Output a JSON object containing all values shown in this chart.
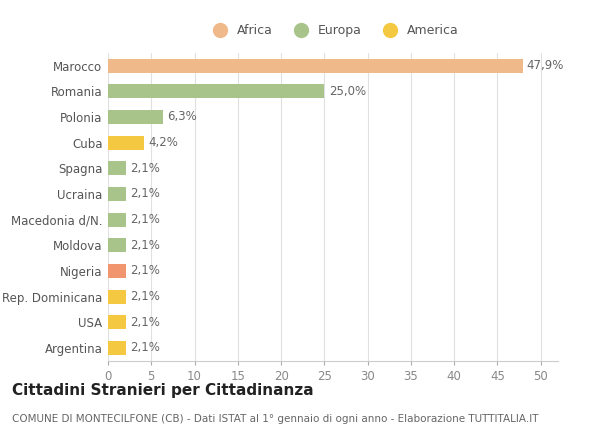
{
  "categories": [
    "Argentina",
    "USA",
    "Rep. Dominicana",
    "Nigeria",
    "Moldova",
    "Macedonia d/N.",
    "Ucraina",
    "Spagna",
    "Cuba",
    "Polonia",
    "Romania",
    "Marocco"
  ],
  "values": [
    2.1,
    2.1,
    2.1,
    2.1,
    2.1,
    2.1,
    2.1,
    2.1,
    4.2,
    6.3,
    25.0,
    47.9
  ],
  "colors": [
    "#f5c842",
    "#f5c842",
    "#f5c842",
    "#f0956e",
    "#a8c48a",
    "#a8c48a",
    "#a8c48a",
    "#a8c48a",
    "#f5c842",
    "#a8c48a",
    "#a8c48a",
    "#f0b98a"
  ],
  "labels": [
    "2,1%",
    "2,1%",
    "2,1%",
    "2,1%",
    "2,1%",
    "2,1%",
    "2,1%",
    "2,1%",
    "4,2%",
    "6,3%",
    "25,0%",
    "47,9%"
  ],
  "legend": [
    {
      "label": "Africa",
      "color": "#f0b98a"
    },
    {
      "label": "Europa",
      "color": "#a8c48a"
    },
    {
      "label": "America",
      "color": "#f5c842"
    }
  ],
  "xlim": [
    0,
    52
  ],
  "xticks": [
    0,
    5,
    10,
    15,
    20,
    25,
    30,
    35,
    40,
    45,
    50
  ],
  "title": "Cittadini Stranieri per Cittadinanza",
  "subtitle": "COMUNE DI MONTECILFONE (CB) - Dati ISTAT al 1° gennaio di ogni anno - Elaborazione TUTTITALIA.IT",
  "bg_color": "#ffffff",
  "grid_color": "#e0e0e0",
  "bar_height": 0.55,
  "label_fontsize": 8.5,
  "ytick_fontsize": 8.5,
  "xtick_fontsize": 8.5,
  "title_fontsize": 11,
  "subtitle_fontsize": 7.5
}
